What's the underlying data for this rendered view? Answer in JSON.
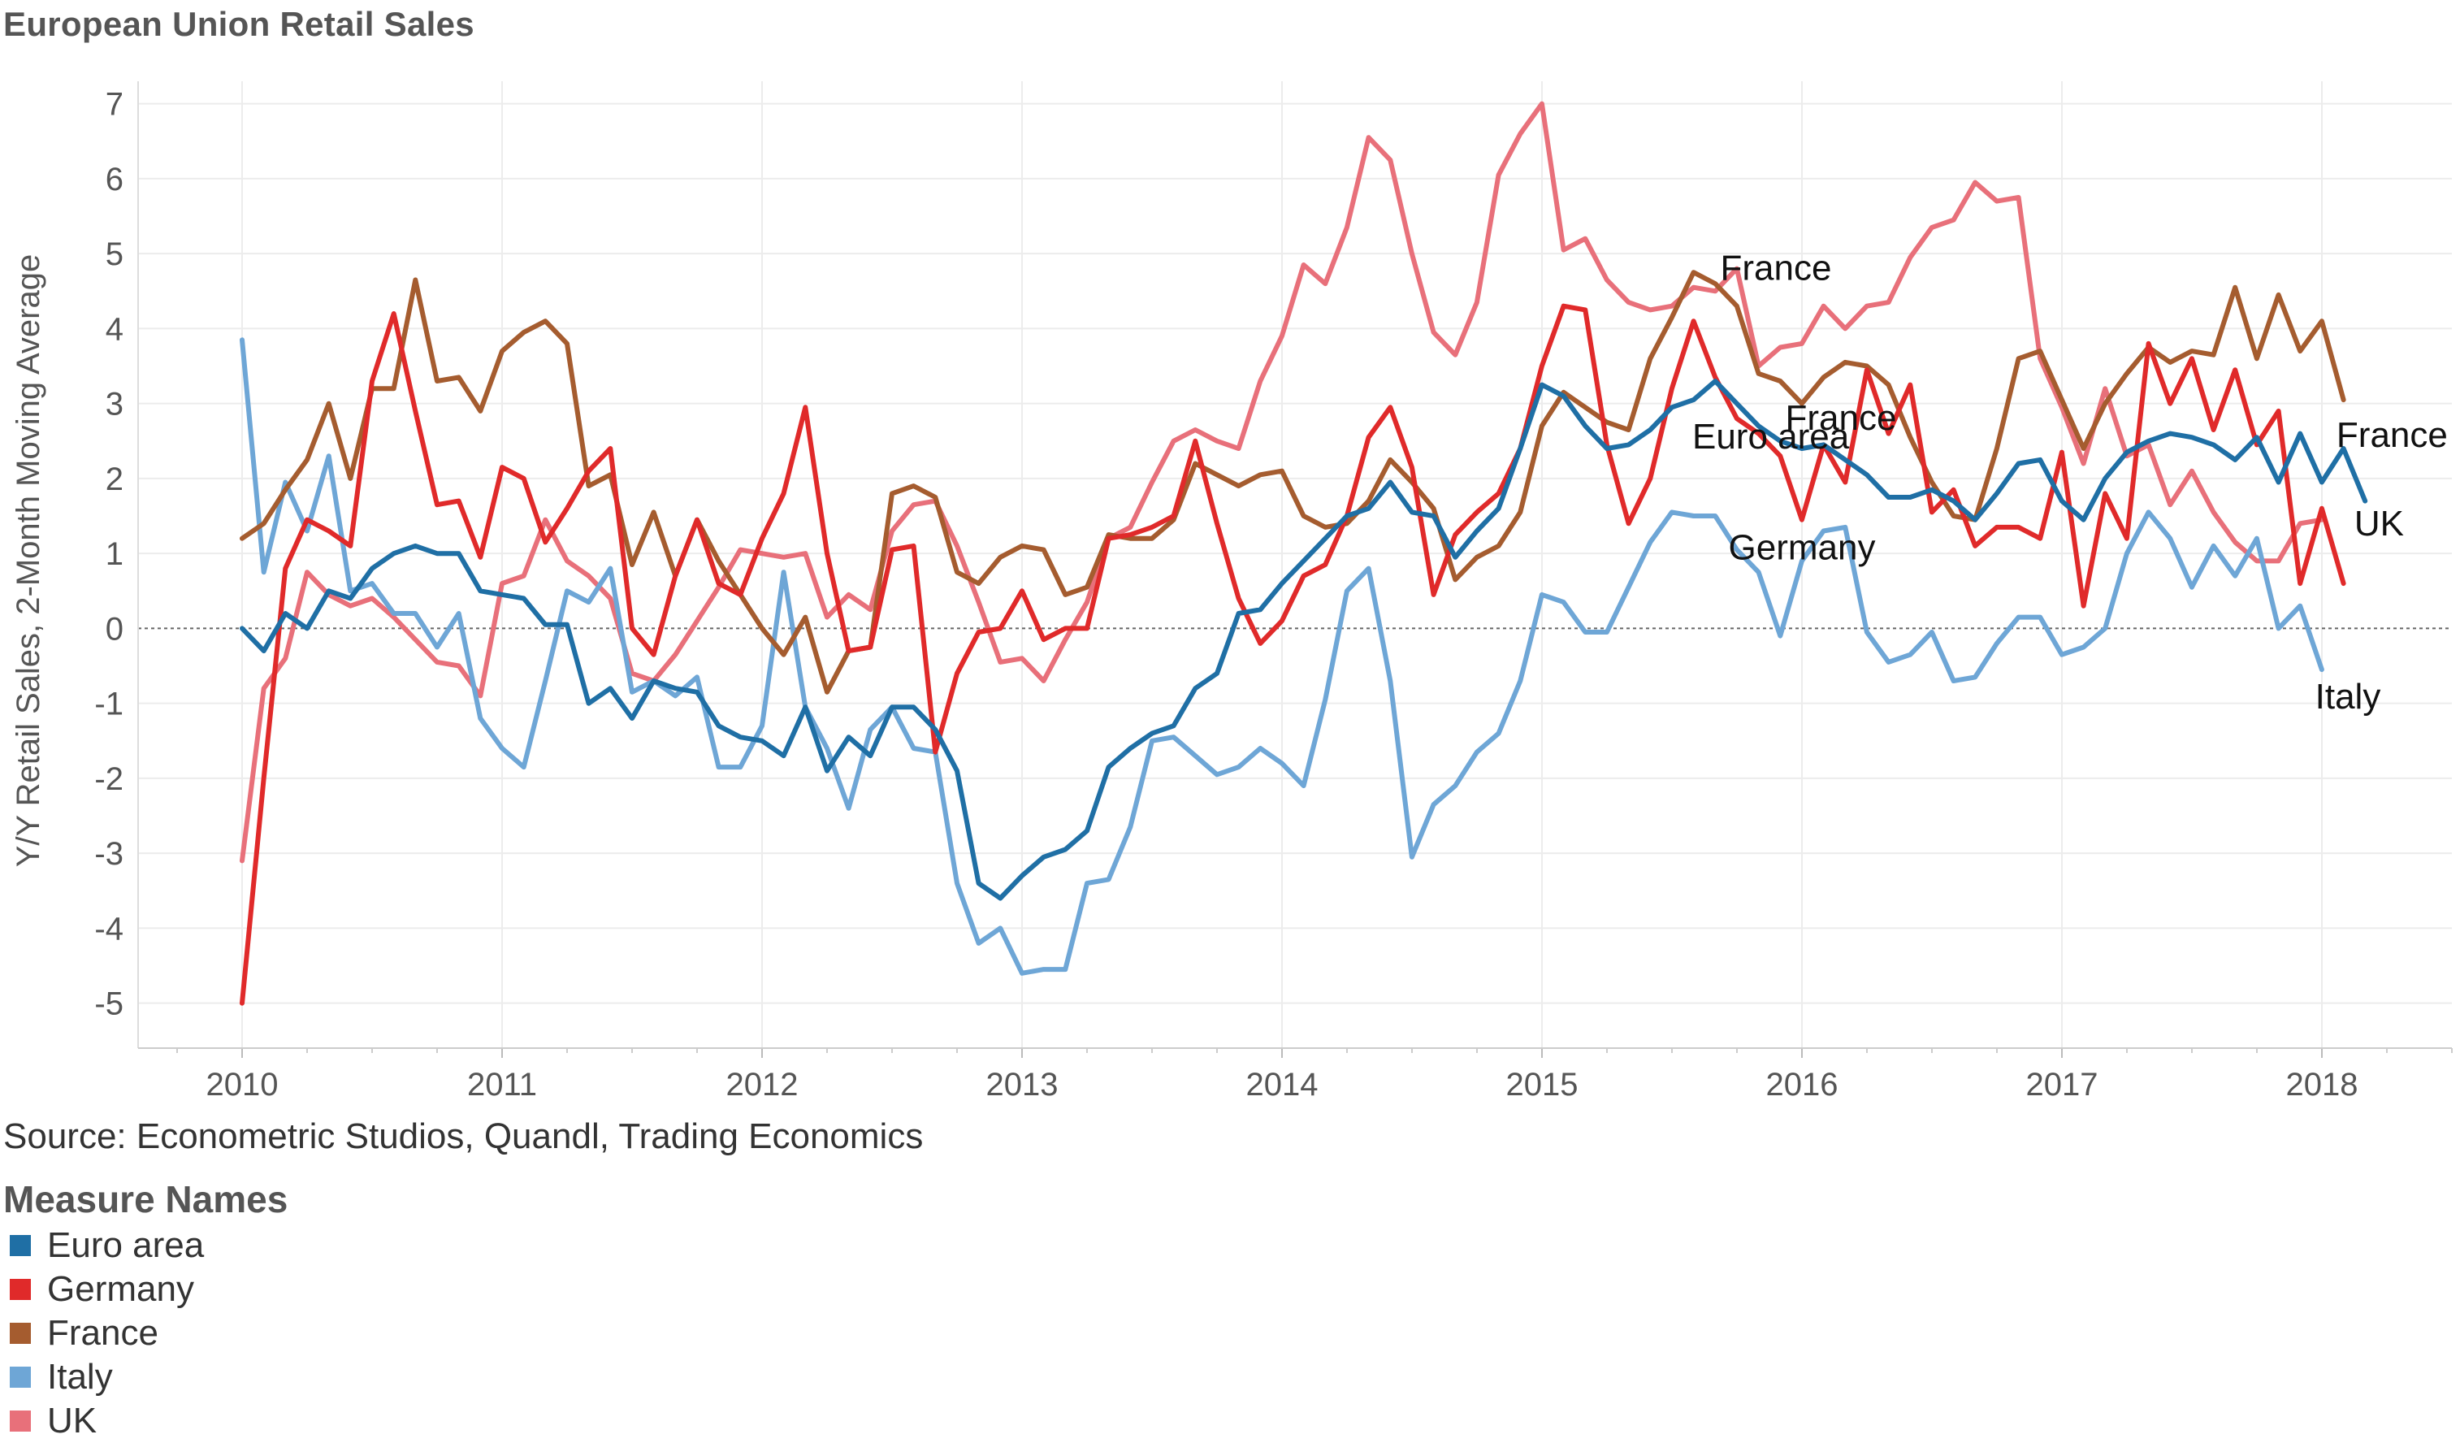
{
  "chart_data": {
    "type": "line",
    "title": "European Union Retail Sales",
    "source": "Source: Econometric Studios, Quandl, Trading Economics",
    "xlabel": "",
    "ylabel": "Y/Y Retail Sales, 2-Month Moving Average",
    "xlim": [
      2009.6,
      2018.5
    ],
    "ylim": [
      -5.6,
      7.3
    ],
    "x_ticks": [
      2010,
      2011,
      2012,
      2013,
      2014,
      2015,
      2016,
      2017,
      2018
    ],
    "y_ticks": [
      -5,
      -4,
      -3,
      -2,
      -1,
      0,
      1,
      2,
      3,
      4,
      5,
      6,
      7
    ],
    "grid": true,
    "zero_line": true,
    "x_start": 2010.0,
    "x_step": 0.08333,
    "legend": {
      "title": "Measure Names",
      "position": "bottom-left"
    },
    "series": [
      {
        "name": "Euro area",
        "color": "#1f6fa5",
        "values": [
          0.0,
          -0.3,
          0.2,
          0.0,
          0.5,
          0.4,
          0.8,
          1.0,
          1.1,
          1.0,
          1.0,
          0.5,
          0.45,
          0.4,
          0.05,
          0.05,
          -1.0,
          -0.8,
          -1.2,
          -0.7,
          -0.8,
          -0.85,
          -1.3,
          -1.45,
          -1.5,
          -1.7,
          -1.05,
          -1.9,
          -1.45,
          -1.7,
          -1.05,
          -1.05,
          -1.35,
          -1.9,
          -3.4,
          -3.6,
          -3.3,
          -3.05,
          -2.95,
          -2.7,
          -1.85,
          -1.6,
          -1.4,
          -1.3,
          -0.8,
          -0.6,
          0.2,
          0.25,
          0.6,
          0.9,
          1.2,
          1.5,
          1.6,
          1.95,
          1.55,
          1.5,
          0.95,
          1.3,
          1.6,
          2.4,
          3.25,
          3.1,
          2.7,
          2.4,
          2.45,
          2.65,
          2.95,
          3.05,
          3.3,
          3.0,
          2.7,
          2.5,
          2.4,
          2.45,
          2.25,
          2.05,
          1.75,
          1.75,
          1.85,
          1.7,
          1.45,
          1.8,
          2.2,
          2.25,
          1.7,
          1.45,
          2.0,
          2.35,
          2.5,
          2.6,
          2.55,
          2.45,
          2.25,
          2.55,
          1.95,
          2.6,
          1.95,
          2.4,
          1.7
        ]
      },
      {
        "name": "Germany",
        "color": "#e02a2a",
        "values": [
          -5.0,
          -2.0,
          0.8,
          1.45,
          1.3,
          1.1,
          3.3,
          4.2,
          2.9,
          1.65,
          1.7,
          0.95,
          2.15,
          2.0,
          1.15,
          1.6,
          2.1,
          2.4,
          0.0,
          -0.35,
          0.7,
          1.45,
          0.6,
          0.45,
          1.2,
          1.8,
          2.95,
          1.0,
          -0.3,
          -0.25,
          1.05,
          1.1,
          -1.65,
          -0.6,
          -0.05,
          0.0,
          0.5,
          -0.15,
          0.0,
          0.0,
          1.2,
          1.25,
          1.35,
          1.5,
          2.5,
          1.4,
          0.4,
          -0.2,
          0.1,
          0.7,
          0.85,
          1.5,
          2.55,
          2.95,
          2.15,
          0.45,
          1.25,
          1.55,
          1.8,
          2.4,
          3.5,
          4.3,
          4.25,
          2.45,
          1.4,
          2.0,
          3.2,
          4.1,
          3.35,
          2.8,
          2.6,
          2.3,
          1.45,
          2.45,
          1.95,
          3.45,
          2.6,
          3.25,
          1.55,
          1.85,
          1.1,
          1.35,
          1.35,
          1.2,
          2.35,
          0.3,
          1.8,
          1.2,
          3.8,
          3.0,
          3.6,
          2.65,
          3.45,
          2.45,
          2.9,
          0.6,
          1.6,
          0.6
        ]
      },
      {
        "name": "France",
        "color": "#a55c2f",
        "values": [
          1.2,
          1.4,
          1.85,
          2.25,
          3.0,
          2.0,
          3.2,
          3.2,
          4.65,
          3.3,
          3.35,
          2.9,
          3.7,
          3.95,
          4.1,
          3.8,
          1.9,
          2.05,
          0.85,
          1.55,
          0.7,
          1.45,
          0.9,
          0.45,
          0.0,
          -0.35,
          0.15,
          -0.85,
          -0.3,
          -0.25,
          1.8,
          1.9,
          1.75,
          0.75,
          0.6,
          0.95,
          1.1,
          1.05,
          0.45,
          0.55,
          1.25,
          1.2,
          1.2,
          1.45,
          2.2,
          2.05,
          1.9,
          2.05,
          2.1,
          1.5,
          1.35,
          1.4,
          1.7,
          2.25,
          1.95,
          1.6,
          0.65,
          0.95,
          1.1,
          1.55,
          2.7,
          3.15,
          2.95,
          2.75,
          2.65,
          3.6,
          4.15,
          4.75,
          4.6,
          4.3,
          3.4,
          3.3,
          3.0,
          3.35,
          3.55,
          3.5,
          3.25,
          2.55,
          1.95,
          1.5,
          1.45,
          2.4,
          3.6,
          3.7,
          3.05,
          2.4,
          3.0,
          3.4,
          3.75,
          3.55,
          3.7,
          3.65,
          4.55,
          3.6,
          4.45,
          3.7,
          4.1,
          3.05
        ]
      },
      {
        "name": "Italy",
        "color": "#6ea6d6",
        "values": [
          3.85,
          0.75,
          1.95,
          1.3,
          2.3,
          0.5,
          0.6,
          0.2,
          0.2,
          -0.25,
          0.2,
          -1.2,
          -1.6,
          -1.85,
          -0.7,
          0.5,
          0.35,
          0.8,
          -0.85,
          -0.7,
          -0.9,
          -0.65,
          -1.85,
          -1.85,
          -1.3,
          0.75,
          -1.05,
          -1.6,
          -2.4,
          -1.35,
          -1.05,
          -1.6,
          -1.65,
          -3.4,
          -4.2,
          -4.0,
          -4.6,
          -4.55,
          -4.55,
          -3.4,
          -3.35,
          -2.65,
          -1.5,
          -1.45,
          -1.7,
          -1.95,
          -1.85,
          -1.6,
          -1.8,
          -2.1,
          -0.95,
          0.5,
          0.8,
          -0.7,
          -3.05,
          -2.35,
          -2.1,
          -1.65,
          -1.4,
          -0.7,
          0.45,
          0.35,
          -0.05,
          -0.05,
          0.55,
          1.15,
          1.55,
          1.5,
          1.5,
          1.05,
          0.75,
          -0.1,
          0.9,
          1.3,
          1.35,
          -0.05,
          -0.45,
          -0.35,
          -0.05,
          -0.7,
          -0.65,
          -0.2,
          0.15,
          0.15,
          -0.35,
          -0.25,
          0.0,
          1.0,
          1.55,
          1.2,
          0.55,
          1.1,
          0.7,
          1.2,
          0.0,
          0.3,
          -0.55
        ]
      },
      {
        "name": "UK",
        "color": "#e8707a",
        "values": [
          -3.1,
          -0.8,
          -0.4,
          0.75,
          0.45,
          0.3,
          0.4,
          0.15,
          -0.15,
          -0.45,
          -0.5,
          -0.9,
          0.6,
          0.7,
          1.45,
          0.9,
          0.7,
          0.4,
          -0.6,
          -0.7,
          -0.35,
          0.1,
          0.55,
          1.05,
          1.0,
          0.95,
          1.0,
          0.15,
          0.45,
          0.25,
          1.3,
          1.65,
          1.7,
          1.1,
          0.35,
          -0.45,
          -0.4,
          -0.7,
          -0.15,
          0.35,
          1.2,
          1.35,
          1.95,
          2.5,
          2.65,
          2.5,
          2.4,
          3.3,
          3.9,
          4.85,
          4.6,
          5.35,
          6.55,
          6.25,
          5.0,
          3.95,
          3.65,
          4.35,
          6.05,
          6.6,
          7.0,
          5.05,
          5.2,
          4.65,
          4.35,
          4.25,
          4.3,
          4.55,
          4.5,
          4.8,
          3.5,
          3.75,
          3.8,
          4.3,
          4.0,
          4.3,
          4.35,
          4.95,
          5.35,
          5.45,
          5.95,
          5.7,
          5.75,
          3.6,
          2.95,
          2.2,
          3.2,
          2.3,
          2.45,
          1.65,
          2.1,
          1.55,
          1.15,
          0.9,
          0.9,
          1.4,
          1.45
        ]
      }
    ],
    "annotations": [
      {
        "text": "France",
        "x": 2015.9,
        "y": 4.65
      },
      {
        "text": "Euro area",
        "x": 2015.88,
        "y": 2.4
      },
      {
        "text": "France",
        "x": 2016.15,
        "y": 2.65
      },
      {
        "text": "Germany",
        "x": 2016.0,
        "y": 0.92
      },
      {
        "text": "France",
        "x": 2018.27,
        "y": 2.42
      },
      {
        "text": "UK",
        "x": 2018.22,
        "y": 1.24
      },
      {
        "text": "Italy",
        "x": 2018.1,
        "y": -1.07
      }
    ]
  }
}
